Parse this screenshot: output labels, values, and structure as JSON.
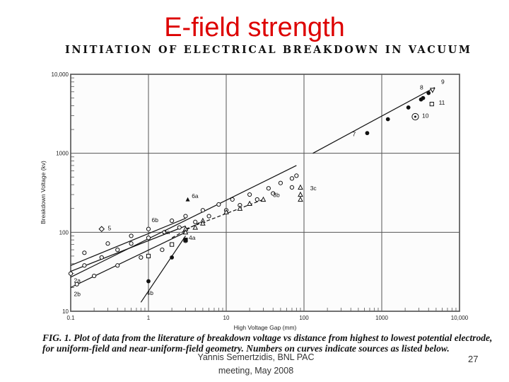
{
  "slide": {
    "title": "E-field strength",
    "figure_heading": "INITIATION OF ELECTRICAL BREAKDOWN IN VACUUM",
    "caption_line1": "FIG. 1. Plot of data from the literature of breakdown voltage vs distance from highest to lowest potential electrode,",
    "caption_line2": "for uniform-field and near-uniform-field geometry. Numbers on curves indicate sources as listed below.",
    "footer_line1": "Yannis Semertzidis, BNL PAC",
    "footer_line2": "meeting, May 2008",
    "page_number": "27"
  },
  "chart_data": {
    "type": "scatter",
    "x_scale": "log",
    "y_scale": "log",
    "xlabel": "High Voltage Gap (mm)",
    "ylabel": "Breakdown Voltage (kv)",
    "xlim": [
      0.1,
      10000
    ],
    "ylim": [
      10,
      10000
    ],
    "x_ticks": [
      {
        "value": 0.1,
        "label": "0.1"
      },
      {
        "value": 1,
        "label": "1"
      },
      {
        "value": 10,
        "label": "10"
      },
      {
        "value": 100,
        "label": "100"
      },
      {
        "value": 1000,
        "label": "1000"
      },
      {
        "value": 10000,
        "label": "10,000"
      }
    ],
    "y_ticks": [
      {
        "value": 10,
        "label": "10"
      },
      {
        "value": 100,
        "label": "100"
      },
      {
        "value": 1000,
        "label": "1000"
      },
      {
        "value": 10000,
        "label": "10,000"
      }
    ],
    "grid": true,
    "series": [
      {
        "name": "2a",
        "marker": "circle-open",
        "line": "solid",
        "points": [
          [
            0.1,
            30
          ],
          [
            0.15,
            38
          ],
          [
            0.25,
            48
          ],
          [
            0.4,
            60
          ],
          [
            0.6,
            72
          ],
          [
            1.0,
            85
          ],
          [
            1.6,
            100
          ],
          [
            2.5,
            115
          ],
          [
            4,
            135
          ],
          [
            6,
            160
          ],
          [
            10,
            190
          ],
          [
            15,
            220
          ],
          [
            25,
            260
          ],
          [
            40,
            310
          ],
          [
            70,
            370
          ]
        ]
      },
      {
        "name": "2b",
        "marker": "circle-open",
        "line": "solid",
        "points": [
          [
            0.12,
            22
          ],
          [
            0.2,
            28
          ],
          [
            0.4,
            38
          ],
          [
            0.8,
            48
          ],
          [
            1.5,
            60
          ],
          [
            3,
            78
          ]
        ]
      },
      {
        "name": "6b",
        "marker": "circle-open",
        "line": "solid",
        "points": [
          [
            0.15,
            55
          ],
          [
            0.3,
            72
          ],
          [
            0.6,
            90
          ],
          [
            1.0,
            110
          ],
          [
            2,
            140
          ],
          [
            3,
            160
          ],
          [
            5,
            190
          ],
          [
            8,
            225
          ],
          [
            12,
            260
          ],
          [
            20,
            300
          ],
          [
            35,
            360
          ],
          [
            50,
            420
          ],
          [
            70,
            480
          ],
          [
            80,
            520
          ]
        ]
      },
      {
        "name": "3a",
        "marker": "square-open",
        "line": "solid",
        "points": [
          [
            1,
            50
          ],
          [
            2,
            70
          ],
          [
            3,
            80
          ]
        ]
      },
      {
        "name": "3b",
        "marker": "triangle-open",
        "line": "dashed",
        "points": [
          [
            3,
            110
          ],
          [
            5,
            140
          ],
          [
            10,
            180
          ],
          [
            15,
            200
          ],
          [
            20,
            230
          ],
          [
            30,
            260
          ]
        ]
      },
      {
        "name": "4a",
        "marker": "triangle-open",
        "line": "dashed",
        "points": [
          [
            3,
            100
          ],
          [
            4,
            115
          ],
          [
            5,
            130
          ]
        ]
      },
      {
        "name": "4b",
        "marker": "circle-filled",
        "line": "solid",
        "points": [
          [
            1,
            24
          ],
          [
            2,
            48
          ],
          [
            3,
            80
          ]
        ]
      },
      {
        "name": "6a",
        "marker": "triangle-filled",
        "line": "none",
        "points": [
          [
            3.2,
            260
          ]
        ]
      },
      {
        "name": "5",
        "marker": "diamond-open",
        "line": "none",
        "points": [
          [
            0.25,
            110
          ]
        ]
      },
      {
        "name": "3c",
        "marker": "triangle-open",
        "line": "none",
        "points": [
          [
            90,
            370
          ],
          [
            90,
            300
          ],
          [
            90,
            260
          ]
        ]
      },
      {
        "name": "7",
        "marker": "circle-filled",
        "line": "solid",
        "points": [
          [
            650,
            1800
          ],
          [
            1200,
            2700
          ],
          [
            2200,
            3800
          ],
          [
            3200,
            4800
          ],
          [
            4000,
            5800
          ]
        ]
      },
      {
        "name": "8",
        "marker": "circle-filled",
        "line": "none",
        "points": [
          [
            3400,
            5000
          ]
        ]
      },
      {
        "name": "9",
        "marker": "triangle-down-open",
        "line": "none",
        "points": [
          [
            4500,
            6300
          ]
        ]
      },
      {
        "name": "10",
        "marker": "circle-open-dot",
        "line": "none",
        "points": [
          [
            2700,
            2900
          ]
        ]
      },
      {
        "name": "11",
        "marker": "square-open",
        "line": "none",
        "points": [
          [
            4400,
            4200
          ]
        ]
      }
    ],
    "fit_lines": [
      {
        "series": "2a",
        "from": [
          0.1,
          27
        ],
        "to": [
          80,
          700
        ]
      },
      {
        "series": "2b",
        "from": [
          0.1,
          20
        ],
        "to": [
          3,
          100
        ]
      },
      {
        "series": "6b",
        "from": [
          0.1,
          38
        ],
        "to": [
          3,
          150
        ]
      },
      {
        "series": "3a",
        "from": [
          0.1,
          32
        ],
        "to": [
          3,
          120
        ]
      },
      {
        "series": "3b",
        "from": [
          3,
          110
        ],
        "to": [
          30,
          260
        ]
      },
      {
        "series": "4a",
        "from": [
          2,
          85
        ],
        "to": [
          5,
          140
        ]
      },
      {
        "series": "4b",
        "from": [
          0.8,
          13
        ],
        "to": [
          3,
          90
        ]
      },
      {
        "series": "7",
        "from": [
          130,
          1000
        ],
        "to": [
          4800,
          6800
        ]
      }
    ]
  }
}
